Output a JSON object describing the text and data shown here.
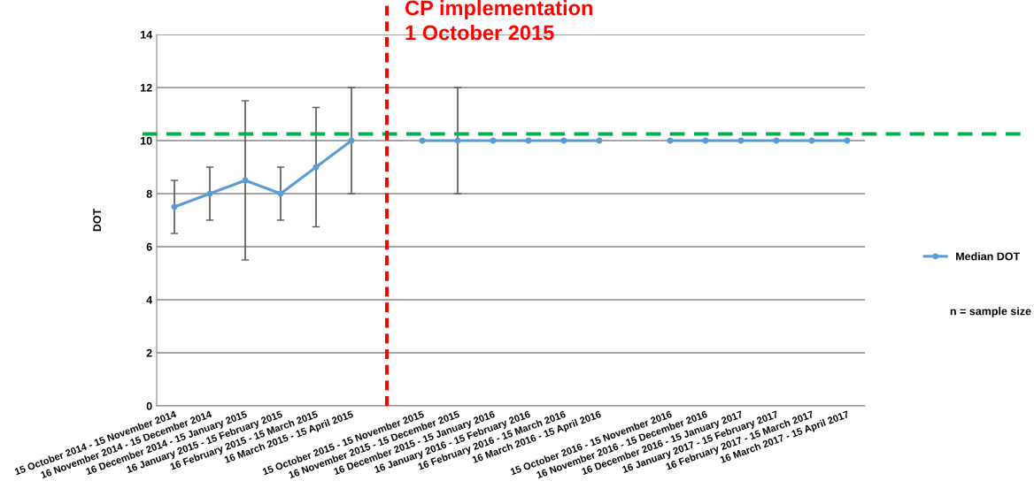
{
  "chart_data": {
    "type": "line",
    "ylabel": "DOT",
    "categories": [
      "15 October 2014 - 15 November 2014",
      "16 November 2014 - 15 December 2014",
      "16 December 2014 - 15 January 2015",
      "16 January 2015 - 15 February 2015",
      "16 February 2015 - 15 March 2015",
      "16 March 2015 - 15 April 2015",
      null,
      "15 October 2015 - 15 November 2015",
      "16 November 2015 - 15 December 2015",
      "16 December 2015 - 15 January 2016",
      "16 January 2016 - 15 February 2016",
      "16 February 2016 - 15 March 2016",
      "16 March 2016 - 15 April 2016",
      null,
      "15 October 2016 - 15 November 2016",
      "16 November 2016 - 15 December 2016",
      "16 December 2016 - 15 January 2017",
      "16 January 2017 - 15 February 2017",
      "16 February 2017 - 15 March 2017",
      "16 March 2017 - 15 April 2017"
    ],
    "series": [
      {
        "name": "Median DOT",
        "color": "#5b9bd5",
        "values": [
          7.5,
          8,
          8.5,
          8,
          9,
          10,
          null,
          10,
          10,
          10,
          10,
          10,
          10,
          null,
          10,
          10,
          10,
          10,
          10,
          10
        ],
        "errors": [
          [
            6.5,
            8.5
          ],
          [
            7,
            9
          ],
          [
            5.5,
            11.5
          ],
          [
            7,
            9
          ],
          [
            6.75,
            11.25
          ],
          [
            8,
            12
          ],
          null,
          null,
          [
            8,
            12
          ],
          null,
          null,
          null,
          null,
          null,
          null,
          null,
          null,
          null,
          null,
          null
        ]
      }
    ],
    "ylim": [
      0,
      14
    ],
    "yticks": [
      0,
      2,
      4,
      6,
      8,
      10,
      12,
      14
    ],
    "grid": "y",
    "legend": "right",
    "marker": "circle",
    "line_style": "solid",
    "ref_lines": [
      {
        "axis": "y",
        "value": 10.25,
        "color": "#00b050",
        "line_style": "dashed"
      }
    ],
    "annotations": [
      "CP implementation\n1 October 2015",
      "n = sample size"
    ]
  }
}
